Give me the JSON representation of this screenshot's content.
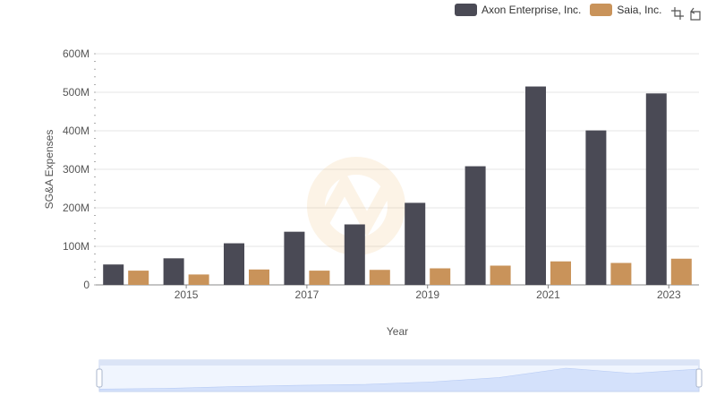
{
  "colors": {
    "axon": "#4a4a55",
    "saia": "#c9935a",
    "grid": "#e6e6e6",
    "axis_text": "#555555",
    "zoom_fill": "#d5e1fb",
    "zoom_border": "#c5d3ef"
  },
  "toolbox": {
    "icons": [
      "zoom-icon",
      "restore-icon"
    ]
  },
  "chart_data": {
    "type": "bar",
    "xlabel": "Year",
    "ylabel": "SG&A Expenses",
    "x": [
      2014,
      2015,
      2016,
      2017,
      2018,
      2019,
      2020,
      2021,
      2022,
      2023
    ],
    "x_tick_labels": [
      "2015",
      "2017",
      "2019",
      "2021",
      "2023"
    ],
    "x_tick_values": [
      2015,
      2017,
      2019,
      2021,
      2023
    ],
    "y_tick_labels": [
      "0",
      "100M",
      "200M",
      "300M",
      "400M",
      "500M",
      "600M"
    ],
    "ylim": [
      0,
      600
    ],
    "y_unit": "millions",
    "grid": true,
    "legend_position": "top-right",
    "series": [
      {
        "name": "Axon Enterprise, Inc.",
        "values": [
          53,
          69,
          108,
          138,
          157,
          213,
          308,
          515,
          401,
          497
        ]
      },
      {
        "name": "Saia, Inc.",
        "values": [
          37,
          27,
          40,
          37,
          39,
          43,
          50,
          61,
          57,
          68
        ]
      }
    ]
  }
}
